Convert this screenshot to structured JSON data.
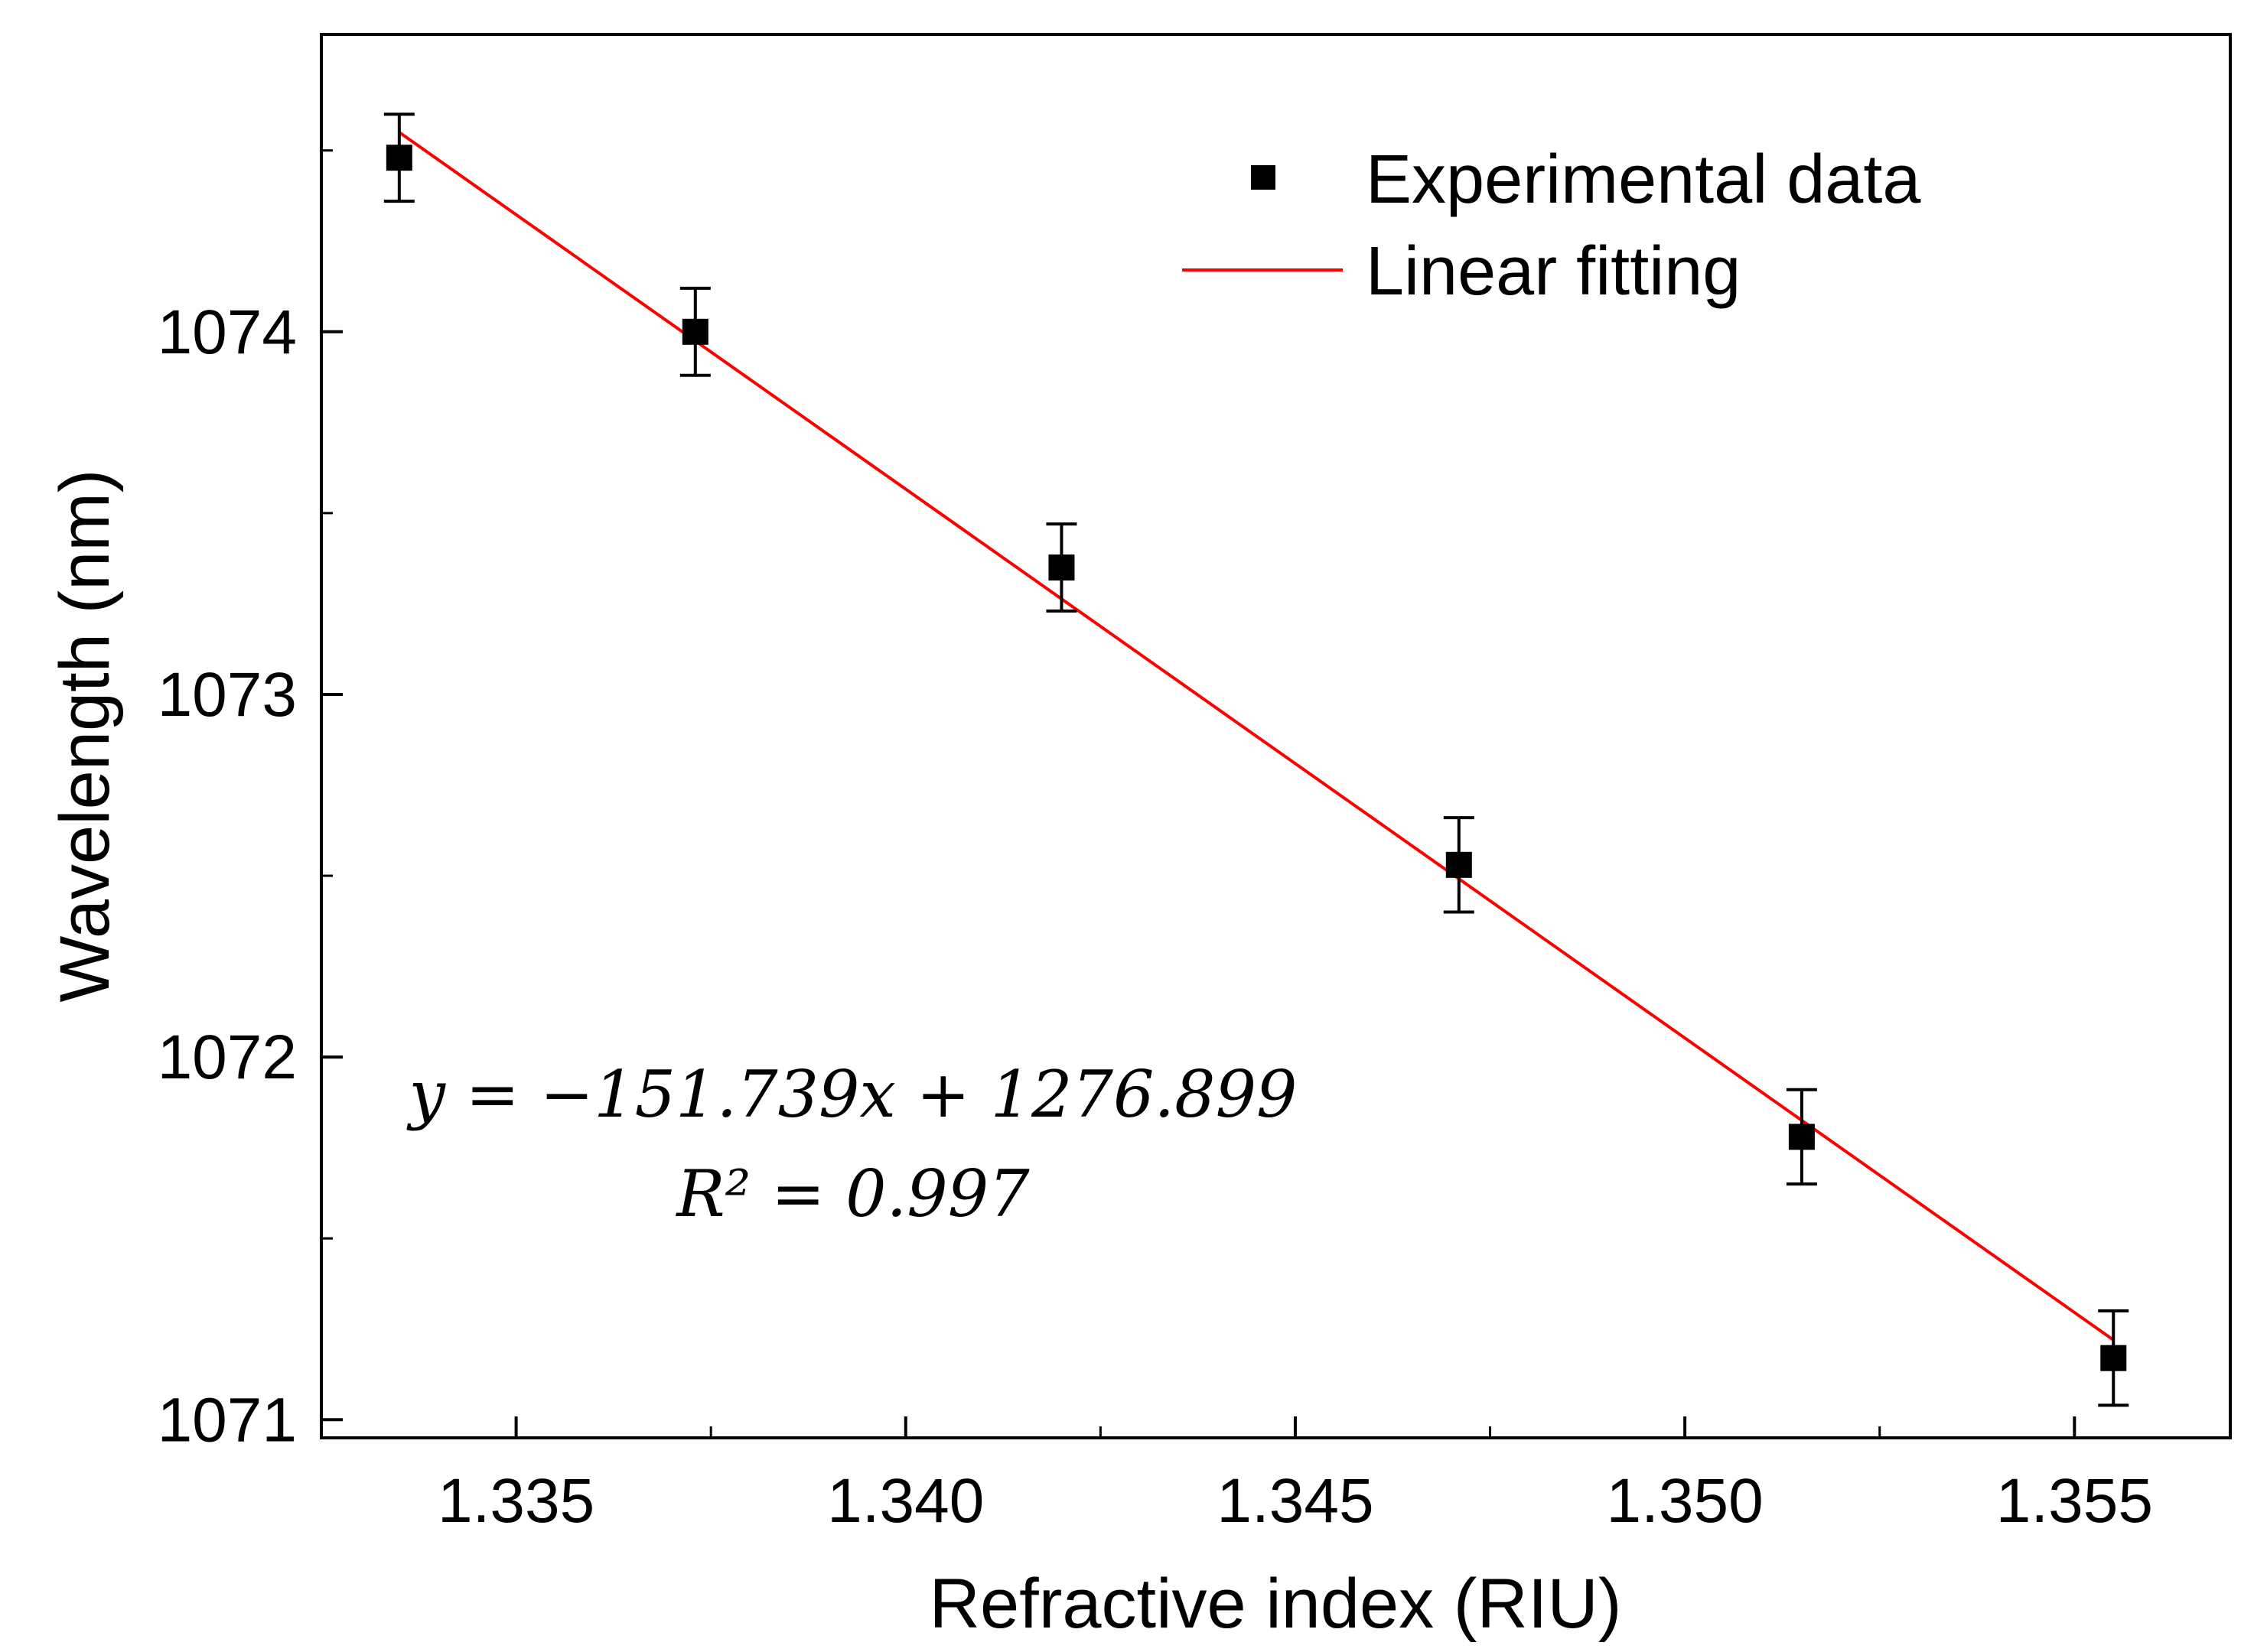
{
  "chart_data": {
    "type": "scatter",
    "xlabel": "Refractive index (RIU)",
    "ylabel": "Wavelength (nm)",
    "xlim": [
      1.3325,
      1.357
    ],
    "ylim": [
      1070.95,
      1074.82
    ],
    "x_ticks": [
      "1.335",
      "1.340",
      "1.345",
      "1.350",
      "1.355"
    ],
    "x_tick_values": [
      1.335,
      1.34,
      1.345,
      1.35,
      1.355
    ],
    "y_ticks": [
      "1071",
      "1072",
      "1073",
      "1074"
    ],
    "y_tick_values": [
      1071,
      1072,
      1073,
      1074
    ],
    "grid": false,
    "legend_position": "top-right",
    "series": [
      {
        "name": "Experimental data",
        "kind": "scatter",
        "marker": "square",
        "color": "#000000",
        "x": [
          1.3335,
          1.3373,
          1.342,
          1.3471,
          1.3515,
          1.3555
        ],
        "y": [
          1074.48,
          1074.0,
          1073.35,
          1072.53,
          1071.78,
          1071.17
        ],
        "error": [
          0.12,
          0.12,
          0.12,
          0.13,
          0.13,
          0.13
        ]
      },
      {
        "name": "Linear fitting",
        "kind": "line",
        "color": "#ff0000",
        "x": [
          1.3335,
          1.3555
        ],
        "y": [
          1074.55,
          1071.22
        ]
      }
    ],
    "annotations": {
      "equation": "y = −151.739x + 1276.899",
      "r_squared": "R² = 0.997"
    }
  }
}
